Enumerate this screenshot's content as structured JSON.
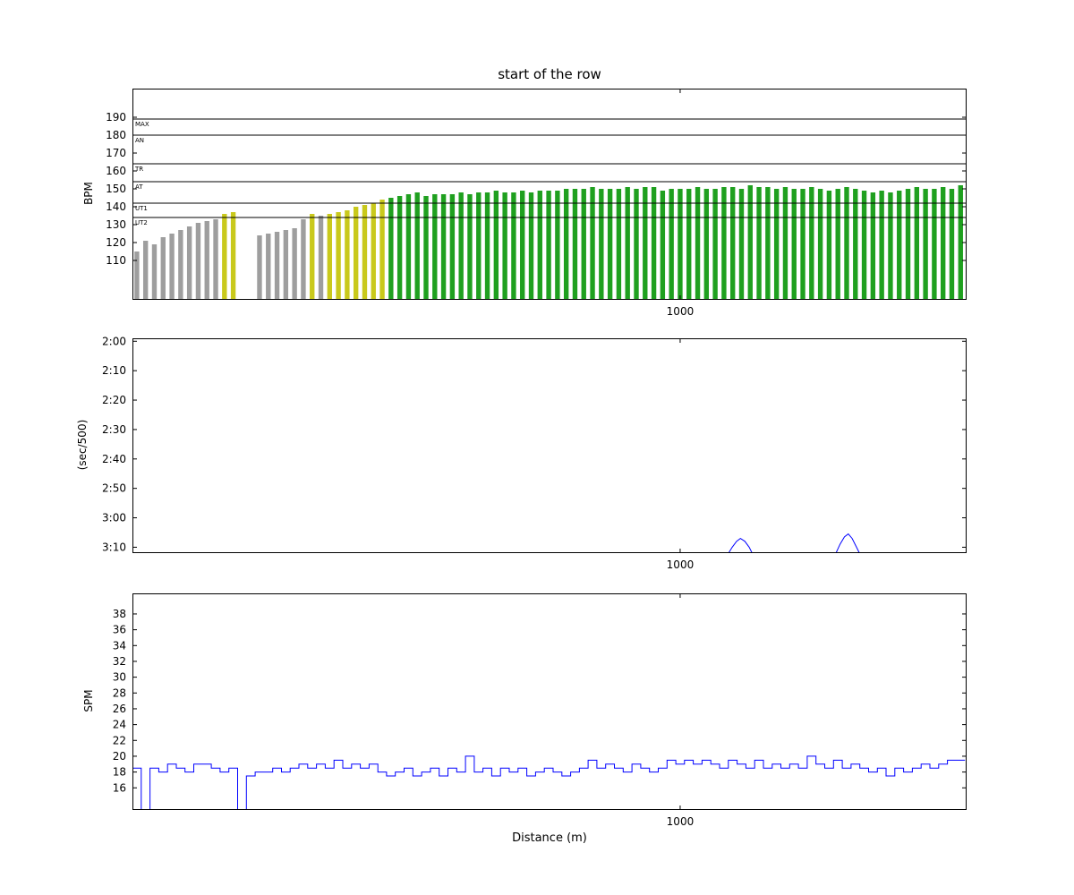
{
  "title": "start of the row",
  "colors": {
    "axis": "#000000",
    "zone_line": "#000000",
    "line_blue": "#0000ff",
    "bar_gray": "#9e9e9e",
    "bar_yellow": "#c9c91c",
    "bar_green": "#1fa01f",
    "background": "#ffffff"
  },
  "chart_data": [
    {
      "type": "bar",
      "name": "heart-rate",
      "title": "start of the row",
      "ylabel": "BPM",
      "xlim": [
        0,
        1523
      ],
      "ylim": [
        88,
        206
      ],
      "yticks": [
        110,
        120,
        130,
        140,
        150,
        160,
        170,
        180,
        190
      ],
      "xticks": [
        1000
      ],
      "grid": false,
      "bar_width_m": 16,
      "zones": [
        {
          "label": "MAX",
          "bpm": 189
        },
        {
          "label": "AN",
          "bpm": 180
        },
        {
          "label": "TR",
          "bpm": 164
        },
        {
          "label": "AT",
          "bpm": 154
        },
        {
          "label": "UT1",
          "bpm": 142
        },
        {
          "label": "UT2",
          "bpm": 134
        }
      ],
      "bars": [
        [
          8,
          115,
          "gray"
        ],
        [
          24,
          121,
          "gray"
        ],
        [
          40,
          119,
          "gray"
        ],
        [
          56,
          123,
          "gray"
        ],
        [
          72,
          125,
          "gray"
        ],
        [
          88,
          127,
          "gray"
        ],
        [
          104,
          129,
          "gray"
        ],
        [
          120,
          131,
          "gray"
        ],
        [
          136,
          132,
          "gray"
        ],
        [
          152,
          133,
          "gray"
        ],
        [
          168,
          136,
          "yellow"
        ],
        [
          184,
          137,
          "yellow"
        ],
        [
          232,
          124,
          "gray"
        ],
        [
          248,
          125,
          "gray"
        ],
        [
          264,
          126,
          "gray"
        ],
        [
          280,
          127,
          "gray"
        ],
        [
          296,
          128,
          "gray"
        ],
        [
          312,
          133,
          "gray"
        ],
        [
          328,
          136,
          "yellow"
        ],
        [
          344,
          135,
          "gray"
        ],
        [
          360,
          136,
          "yellow"
        ],
        [
          376,
          137,
          "yellow"
        ],
        [
          392,
          138,
          "yellow"
        ],
        [
          408,
          140,
          "yellow"
        ],
        [
          424,
          141,
          "yellow"
        ],
        [
          440,
          142,
          "yellow"
        ],
        [
          456,
          144,
          "yellow"
        ],
        [
          472,
          145,
          "green"
        ],
        [
          488,
          146,
          "green"
        ],
        [
          504,
          147,
          "green"
        ],
        [
          520,
          148,
          "green"
        ],
        [
          536,
          146,
          "green"
        ],
        [
          552,
          147,
          "green"
        ],
        [
          568,
          147,
          "green"
        ],
        [
          584,
          147,
          "green"
        ],
        [
          600,
          148,
          "green"
        ],
        [
          616,
          147,
          "green"
        ],
        [
          632,
          148,
          "green"
        ],
        [
          648,
          148,
          "green"
        ],
        [
          664,
          149,
          "green"
        ],
        [
          680,
          148,
          "green"
        ],
        [
          696,
          148,
          "green"
        ],
        [
          712,
          149,
          "green"
        ],
        [
          728,
          148,
          "green"
        ],
        [
          744,
          149,
          "green"
        ],
        [
          760,
          149,
          "green"
        ],
        [
          776,
          149,
          "green"
        ],
        [
          792,
          150,
          "green"
        ],
        [
          808,
          150,
          "green"
        ],
        [
          824,
          150,
          "green"
        ],
        [
          840,
          151,
          "green"
        ],
        [
          856,
          150,
          "green"
        ],
        [
          872,
          150,
          "green"
        ],
        [
          888,
          150,
          "green"
        ],
        [
          904,
          151,
          "green"
        ],
        [
          920,
          150,
          "green"
        ],
        [
          936,
          151,
          "green"
        ],
        [
          952,
          151,
          "green"
        ],
        [
          968,
          149,
          "green"
        ],
        [
          984,
          150,
          "green"
        ],
        [
          1000,
          150,
          "green"
        ],
        [
          1016,
          150,
          "green"
        ],
        [
          1032,
          151,
          "green"
        ],
        [
          1048,
          150,
          "green"
        ],
        [
          1064,
          150,
          "green"
        ],
        [
          1080,
          151,
          "green"
        ],
        [
          1096,
          151,
          "green"
        ],
        [
          1112,
          150,
          "green"
        ],
        [
          1128,
          152,
          "green"
        ],
        [
          1144,
          151,
          "green"
        ],
        [
          1160,
          151,
          "green"
        ],
        [
          1176,
          150,
          "green"
        ],
        [
          1192,
          151,
          "green"
        ],
        [
          1208,
          150,
          "green"
        ],
        [
          1224,
          150,
          "green"
        ],
        [
          1240,
          151,
          "green"
        ],
        [
          1256,
          150,
          "green"
        ],
        [
          1272,
          149,
          "green"
        ],
        [
          1288,
          150,
          "green"
        ],
        [
          1304,
          151,
          "green"
        ],
        [
          1320,
          150,
          "green"
        ],
        [
          1336,
          149,
          "green"
        ],
        [
          1352,
          148,
          "green"
        ],
        [
          1368,
          149,
          "green"
        ],
        [
          1384,
          148,
          "green"
        ],
        [
          1400,
          149,
          "green"
        ],
        [
          1416,
          150,
          "green"
        ],
        [
          1432,
          151,
          "green"
        ],
        [
          1448,
          150,
          "green"
        ],
        [
          1464,
          150,
          "green"
        ],
        [
          1480,
          151,
          "green"
        ],
        [
          1496,
          150,
          "green"
        ],
        [
          1512,
          152,
          "green"
        ]
      ]
    },
    {
      "type": "line",
      "name": "pace",
      "ylabel": "(sec/500)",
      "xlim": [
        0,
        1523
      ],
      "ylim": [
        119,
        192
      ],
      "inverted": true,
      "yticks": [
        {
          "label": "2:00",
          "sec": 120
        },
        {
          "label": "2:10",
          "sec": 130
        },
        {
          "label": "2:20",
          "sec": 140
        },
        {
          "label": "2:30",
          "sec": 150
        },
        {
          "label": "2:40",
          "sec": 160
        },
        {
          "label": "2:50",
          "sec": 170
        },
        {
          "label": "3:00",
          "sec": 180
        },
        {
          "label": "3:10",
          "sec": 190
        }
      ],
      "xticks": [
        1000
      ],
      "grid": false,
      "points": [
        [
          0,
          196
        ],
        [
          1075,
          196
        ],
        [
          1085,
          193
        ],
        [
          1095,
          190
        ],
        [
          1103,
          188
        ],
        [
          1110,
          187
        ],
        [
          1118,
          188
        ],
        [
          1126,
          190
        ],
        [
          1134,
          193
        ],
        [
          1142,
          196
        ],
        [
          1270,
          196
        ],
        [
          1282,
          193
        ],
        [
          1292,
          189
        ],
        [
          1300,
          186.5
        ],
        [
          1307,
          185.5
        ],
        [
          1314,
          187
        ],
        [
          1322,
          190
        ],
        [
          1330,
          193
        ],
        [
          1338,
          196
        ],
        [
          1523,
          196
        ]
      ]
    },
    {
      "type": "step",
      "name": "stroke-rate",
      "ylabel": "SPM",
      "xlabel": "Distance (m)",
      "xlim": [
        0,
        1523
      ],
      "ylim": [
        13.2,
        40.6
      ],
      "yticks": [
        16,
        18,
        20,
        22,
        24,
        26,
        28,
        30,
        32,
        34,
        36,
        38
      ],
      "xticks": [
        1000
      ],
      "grid": false,
      "step_m": 16,
      "points": [
        [
          8,
          18.5
        ],
        [
          24,
          13
        ],
        [
          40,
          18.5
        ],
        [
          56,
          18
        ],
        [
          72,
          19
        ],
        [
          88,
          18.5
        ],
        [
          104,
          18
        ],
        [
          120,
          19
        ],
        [
          136,
          19
        ],
        [
          152,
          18.5
        ],
        [
          168,
          18
        ],
        [
          184,
          18.5
        ],
        [
          200,
          13
        ],
        [
          216,
          17.5
        ],
        [
          232,
          18
        ],
        [
          248,
          18
        ],
        [
          264,
          18.5
        ],
        [
          280,
          18
        ],
        [
          296,
          18.5
        ],
        [
          312,
          19
        ],
        [
          328,
          18.5
        ],
        [
          344,
          19
        ],
        [
          360,
          18.5
        ],
        [
          376,
          19.5
        ],
        [
          392,
          18.5
        ],
        [
          408,
          19
        ],
        [
          424,
          18.5
        ],
        [
          440,
          19
        ],
        [
          456,
          18
        ],
        [
          472,
          17.5
        ],
        [
          488,
          18
        ],
        [
          504,
          18.5
        ],
        [
          520,
          17.5
        ],
        [
          536,
          18
        ],
        [
          552,
          18.5
        ],
        [
          568,
          17.5
        ],
        [
          584,
          18.5
        ],
        [
          600,
          18
        ],
        [
          616,
          20
        ],
        [
          632,
          18
        ],
        [
          648,
          18.5
        ],
        [
          664,
          17.5
        ],
        [
          680,
          18.5
        ],
        [
          696,
          18
        ],
        [
          712,
          18.5
        ],
        [
          728,
          17.5
        ],
        [
          744,
          18
        ],
        [
          760,
          18.5
        ],
        [
          776,
          18
        ],
        [
          792,
          17.5
        ],
        [
          808,
          18
        ],
        [
          824,
          18.5
        ],
        [
          840,
          19.5
        ],
        [
          856,
          18.5
        ],
        [
          872,
          19
        ],
        [
          888,
          18.5
        ],
        [
          904,
          18
        ],
        [
          920,
          19
        ],
        [
          936,
          18.5
        ],
        [
          952,
          18
        ],
        [
          968,
          18.5
        ],
        [
          984,
          19.5
        ],
        [
          1000,
          19
        ],
        [
          1016,
          19.5
        ],
        [
          1032,
          19
        ],
        [
          1048,
          19.5
        ],
        [
          1064,
          19
        ],
        [
          1080,
          18.5
        ],
        [
          1096,
          19.5
        ],
        [
          1112,
          19
        ],
        [
          1128,
          18.5
        ],
        [
          1144,
          19.5
        ],
        [
          1160,
          18.5
        ],
        [
          1176,
          19
        ],
        [
          1192,
          18.5
        ],
        [
          1208,
          19
        ],
        [
          1224,
          18.5
        ],
        [
          1240,
          20
        ],
        [
          1256,
          19
        ],
        [
          1272,
          18.5
        ],
        [
          1288,
          19.5
        ],
        [
          1304,
          18.5
        ],
        [
          1320,
          19
        ],
        [
          1336,
          18.5
        ],
        [
          1352,
          18
        ],
        [
          1368,
          18.5
        ],
        [
          1384,
          17.5
        ],
        [
          1400,
          18.5
        ],
        [
          1416,
          18
        ],
        [
          1432,
          18.5
        ],
        [
          1448,
          19
        ],
        [
          1464,
          18.5
        ],
        [
          1480,
          19
        ],
        [
          1496,
          19.5
        ],
        [
          1512,
          19.5
        ]
      ]
    }
  ]
}
